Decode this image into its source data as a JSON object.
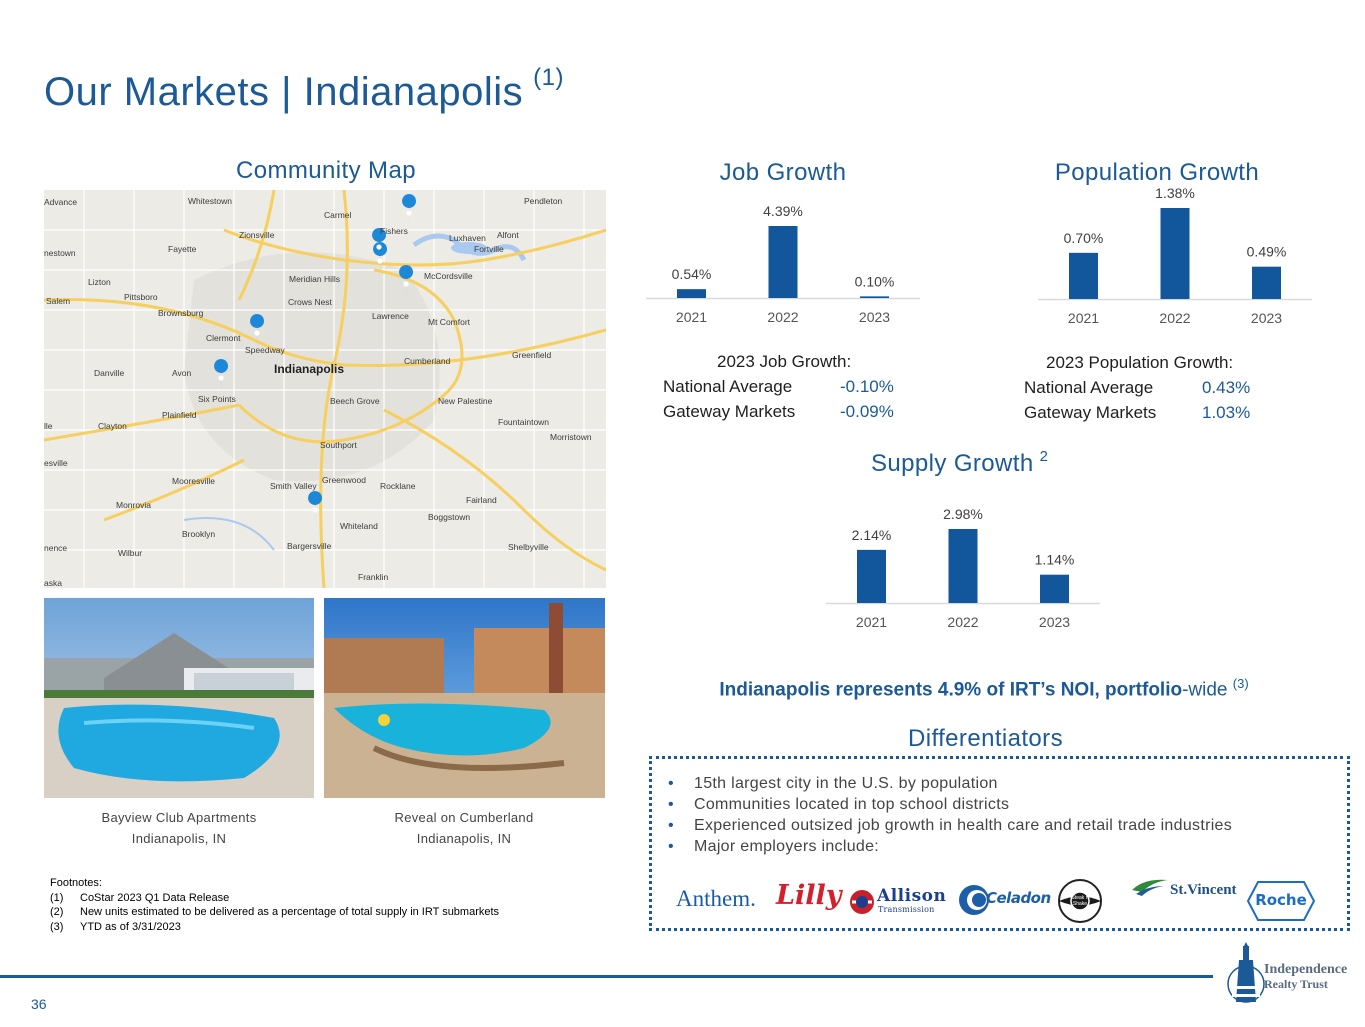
{
  "page": {
    "title": "Our Markets | Indianapolis",
    "title_sup": "(1)",
    "page_number": "36"
  },
  "map": {
    "heading": "Community Map",
    "labels": {
      "whitestown": "Whitestown",
      "advance": "Advance",
      "zionsville": "Zionsville",
      "carmel": "Carmel",
      "fishers": "Fishers",
      "pendleton": "Pendleton",
      "luxhaven": "Luxhaven",
      "alfont": "Alfont",
      "fortville": "Fortville",
      "fayette": "Fayette",
      "nestown": "nestown",
      "lizton": "Lizton",
      "meridian_hills": "Meridian Hills",
      "mccordsville": "McCordsville",
      "pittsboro": "Pittsboro",
      "crows_nest": "Crows Nest",
      "salem": "Salem",
      "brownsburg": "Brownsburg",
      "lawrence": "Lawrence",
      "mt_comfort": "Mt Comfort",
      "clermont": "Clermont",
      "speedway": "Speedway",
      "indianapolis": "Indianapolis",
      "cumberland": "Cumberland",
      "greenfield": "Greenfield",
      "danville": "Danville",
      "avon": "Avon",
      "six_points": "Six Points",
      "beech_grove": "Beech Grove",
      "new_palestine": "New Palestine",
      "plainfield": "Plainfield",
      "clayton": "Clayton",
      "fountaintown": "Fountaintown",
      "lle": "lle",
      "morristown": "Morristown",
      "southport": "Southport",
      "esville": "esville",
      "mooresville": "Mooresville",
      "greenwood": "Greenwood",
      "smith_valley": "Smith Valley",
      "rocklane": "Rocklane",
      "fairland": "Fairland",
      "monrovia": "Monrovia",
      "boggstown": "Boggstown",
      "whiteland": "Whiteland",
      "brooklyn": "Brooklyn",
      "bargersville": "Bargersville",
      "shelbyville": "Shelbyville",
      "nence": "nence",
      "wilbur": "Wilbur",
      "franklin": "Franklin",
      "aska": "aska"
    }
  },
  "properties": [
    {
      "name": "Bayview Club Apartments",
      "location": "Indianapolis, IN"
    },
    {
      "name": "Reveal on Cumberland",
      "location": "Indianapolis, IN"
    }
  ],
  "job_growth": {
    "heading": "Job Growth",
    "stats_title": "2023 Job Growth:",
    "rows": [
      {
        "label": "National Average",
        "value": "-0.10%"
      },
      {
        "label": "Gateway Markets",
        "value": "-0.09%"
      }
    ]
  },
  "population_growth": {
    "heading": "Population Growth",
    "stats_title": "2023 Population Growth:",
    "rows": [
      {
        "label": "National Average",
        "value": "0.43%"
      },
      {
        "label": "Gateway Markets",
        "value": "1.03%"
      }
    ]
  },
  "supply_growth": {
    "heading": "Supply Growth",
    "heading_sup": "2"
  },
  "chart_data": [
    {
      "type": "bar",
      "title": "Job Growth",
      "categories": [
        "2021",
        "2022",
        "2023"
      ],
      "values": [
        0.54,
        4.39,
        0.1
      ],
      "labels": [
        "0.54%",
        "4.39%",
        "0.10%"
      ],
      "color": "#12579b"
    },
    {
      "type": "bar",
      "title": "Population Growth",
      "categories": [
        "2021",
        "2022",
        "2023"
      ],
      "values": [
        0.7,
        1.38,
        0.49
      ],
      "labels": [
        "0.70%",
        "1.38%",
        "0.49%"
      ],
      "color": "#12579b"
    },
    {
      "type": "bar",
      "title": "Supply Growth",
      "categories": [
        "2021",
        "2022",
        "2023"
      ],
      "values": [
        2.14,
        2.98,
        1.14
      ],
      "labels": [
        "2.14%",
        "2.98%",
        "1.14%"
      ],
      "color": "#12579b"
    }
  ],
  "noi": {
    "bold_text": "Indianapolis represents 4.9% of IRT’s NOI, portfolio",
    "normal_text": "-wide",
    "sup": "(3)"
  },
  "differentiators": {
    "heading": "Differentiators",
    "items": [
      "15th largest city in the U.S. by population",
      "Communities located in top school districts",
      "Experienced outsized job growth in health care and retail trade industries",
      "Major employers include:"
    ],
    "employers": {
      "anthem": "Anthem.",
      "lilly": "Lilly",
      "allison": "Allison",
      "allison_sub": "Transmission",
      "celadon": "Celadon",
      "steak": "Steak n Shake",
      "stvincent": "St.Vincent",
      "roche": "Roche"
    }
  },
  "footnotes": {
    "heading": "Footnotes:",
    "items": [
      {
        "num": "(1)",
        "text": "CoStar 2023 Q1 Data Release"
      },
      {
        "num": "(2)",
        "text": "New units estimated to be delivered as a percentage of total supply in IRT submarkets"
      },
      {
        "num": "(3)",
        "text": "YTD as of 3/31/2023"
      }
    ]
  },
  "company": {
    "name_line1": "Independence",
    "name_line2": "Realty Trust"
  },
  "colors": {
    "brand_blue": "#1b5a96",
    "bar_blue": "#12579b"
  }
}
